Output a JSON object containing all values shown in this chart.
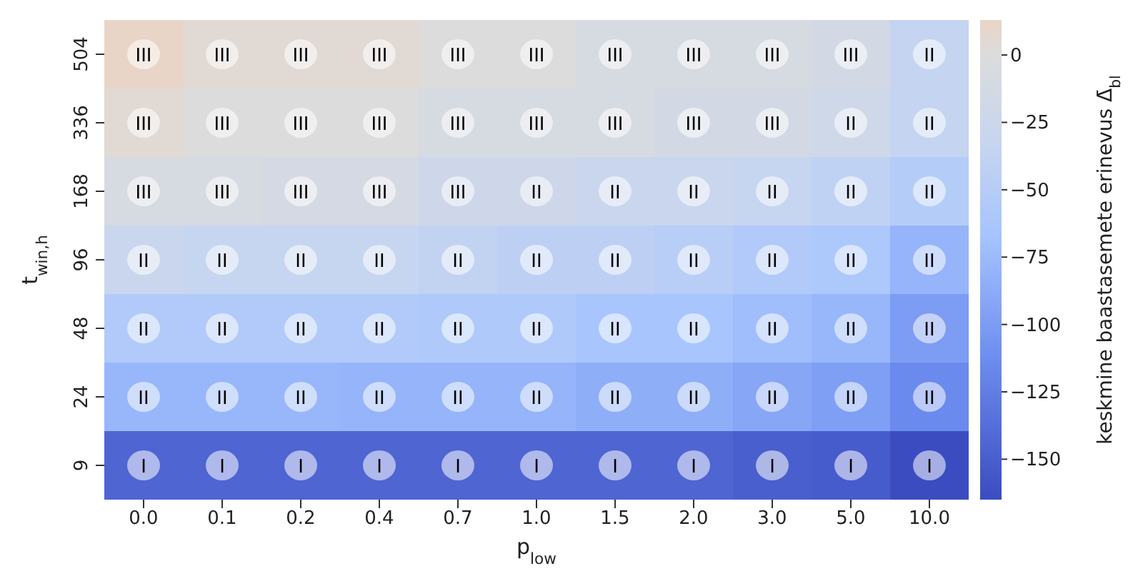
{
  "chart_data": {
    "type": "heatmap",
    "xlabel": "p$_{low}$",
    "ylabel": "t$_{win,h}$",
    "clabel": "keskmine baastasemete erinevus Δ̄$_{bl}$",
    "categories": [
      "0.0",
      "0.1",
      "0.2",
      "0.4",
      "0.7",
      "1.0",
      "1.5",
      "2.0",
      "3.0",
      "5.0",
      "10.0"
    ],
    "y_categories": [
      "504",
      "336",
      "168",
      "96",
      "48",
      "24",
      "9"
    ],
    "cells": [
      [
        12,
        5,
        5,
        5,
        0,
        0,
        -8,
        -8,
        -8,
        -15,
        -35
      ],
      [
        5,
        0,
        0,
        0,
        -8,
        -8,
        -8,
        -13,
        -13,
        -20,
        -35
      ],
      [
        -8,
        -8,
        -12,
        -12,
        -22,
        -22,
        -28,
        -28,
        -33,
        -40,
        -52
      ],
      [
        -28,
        -33,
        -33,
        -33,
        -38,
        -43,
        -43,
        -48,
        -55,
        -60,
        -80
      ],
      [
        -55,
        -55,
        -55,
        -55,
        -58,
        -58,
        -65,
        -65,
        -72,
        -78,
        -100
      ],
      [
        -78,
        -78,
        -78,
        -80,
        -80,
        -80,
        -85,
        -85,
        -92,
        -98,
        -115
      ],
      [
        -145,
        -145,
        -145,
        -145,
        -145,
        -145,
        -145,
        -145,
        -150,
        -152,
        -165
      ]
    ],
    "cell_labels": [
      [
        "III",
        "III",
        "III",
        "III",
        "III",
        "III",
        "III",
        "III",
        "III",
        "III",
        "II"
      ],
      [
        "III",
        "III",
        "III",
        "III",
        "III",
        "III",
        "III",
        "III",
        "III",
        "II",
        "II"
      ],
      [
        "III",
        "III",
        "III",
        "III",
        "III",
        "II",
        "II",
        "II",
        "II",
        "II",
        "II"
      ],
      [
        "II",
        "II",
        "II",
        "II",
        "II",
        "II",
        "II",
        "II",
        "II",
        "II",
        "II"
      ],
      [
        "II",
        "II",
        "II",
        "II",
        "II",
        "II",
        "II",
        "II",
        "II",
        "II",
        "II"
      ],
      [
        "II",
        "II",
        "II",
        "II",
        "II",
        "II",
        "II",
        "II",
        "II",
        "II",
        "II"
      ],
      [
        "I",
        "I",
        "I",
        "I",
        "I",
        "I",
        "I",
        "I",
        "I",
        "I",
        "I"
      ]
    ],
    "clim": [
      -165,
      13
    ],
    "cticks": [
      0,
      -25,
      -50,
      -75,
      -100,
      -125,
      -150
    ]
  }
}
